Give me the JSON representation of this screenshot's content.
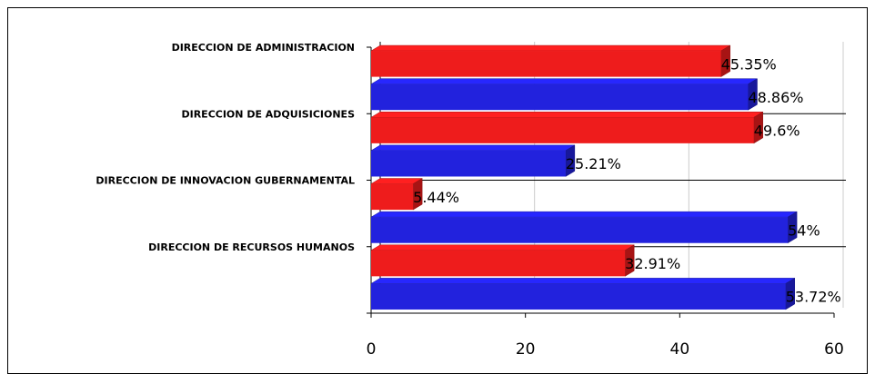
{
  "chart_data": {
    "type": "bar",
    "orientation": "horizontal",
    "categories": [
      "DIRECCION DE ADMINISTRACION",
      "DIRECCION DE ADQUISICIONES",
      "DIRECCION DE INNOVACION GUBERNAMENTAL",
      "DIRECCION DE RECURSOS HUMANOS"
    ],
    "series": [
      {
        "color": "#ee1c1c",
        "values": [
          45.35,
          49.6,
          5.44,
          32.91
        ],
        "value_labels": [
          "45.35%",
          "49.6%",
          "5.44%",
          "32.91%"
        ]
      },
      {
        "color": "#2222dd",
        "values": [
          48.86,
          25.21,
          54,
          53.72
        ],
        "value_labels": [
          "48.86%",
          "25.21%",
          "54%",
          "53.72%"
        ]
      }
    ],
    "xlim": [
      0,
      60
    ],
    "xticks": [
      0,
      20,
      40,
      60
    ],
    "grid": true
  }
}
